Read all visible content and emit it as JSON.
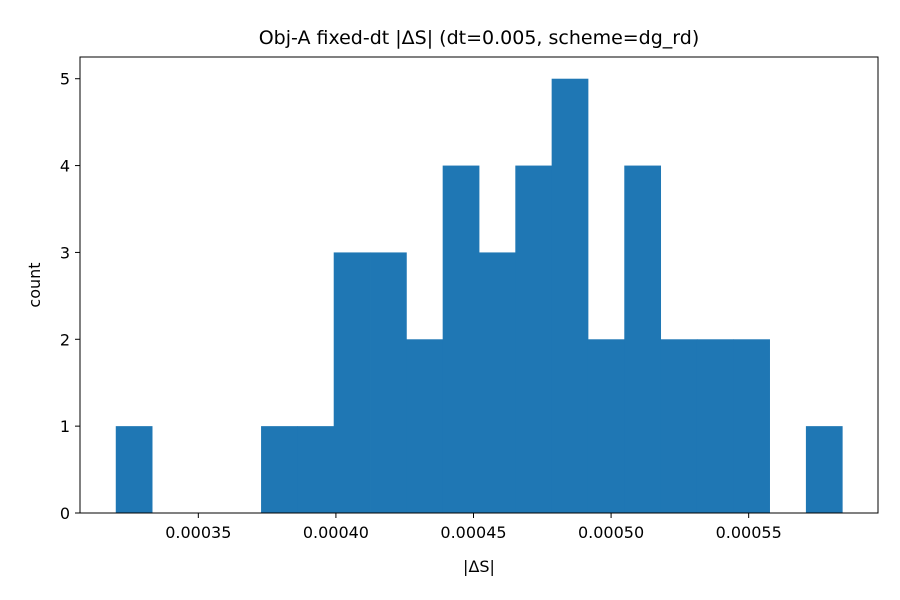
{
  "chart_data": {
    "type": "bar",
    "title": "Obj-A fixed-dt |ΔS| (dt=0.005, scheme=dg_rd)",
    "xlabel": "|ΔS|",
    "ylabel": "count",
    "bins": [
      {
        "x0": 0.00032,
        "x1": 0.0003332,
        "count": 1
      },
      {
        "x0": 0.0003332,
        "x1": 0.0003464,
        "count": 0
      },
      {
        "x0": 0.0003464,
        "x1": 0.0003596,
        "count": 0
      },
      {
        "x0": 0.0003596,
        "x1": 0.0003728,
        "count": 0
      },
      {
        "x0": 0.0003728,
        "x1": 0.000386,
        "count": 1
      },
      {
        "x0": 0.000386,
        "x1": 0.0003992,
        "count": 1
      },
      {
        "x0": 0.0003992,
        "x1": 0.0004124,
        "count": 3
      },
      {
        "x0": 0.0004124,
        "x1": 0.0004256,
        "count": 3
      },
      {
        "x0": 0.0004256,
        "x1": 0.0004388,
        "count": 2
      },
      {
        "x0": 0.0004388,
        "x1": 0.000452,
        "count": 4
      },
      {
        "x0": 0.000452,
        "x1": 0.0004652,
        "count": 3
      },
      {
        "x0": 0.0004652,
        "x1": 0.0004784,
        "count": 4
      },
      {
        "x0": 0.0004784,
        "x1": 0.0004916,
        "count": 5
      },
      {
        "x0": 0.0004916,
        "x1": 0.0005048,
        "count": 2
      },
      {
        "x0": 0.0005048,
        "x1": 0.000518,
        "count": 4
      },
      {
        "x0": 0.000518,
        "x1": 0.0005312,
        "count": 2
      },
      {
        "x0": 0.0005312,
        "x1": 0.0005444,
        "count": 2
      },
      {
        "x0": 0.0005444,
        "x1": 0.0005576,
        "count": 2
      },
      {
        "x0": 0.0005576,
        "x1": 0.0005708,
        "count": 0
      },
      {
        "x0": 0.0005708,
        "x1": 0.000584,
        "count": 1
      }
    ],
    "xlim": [
      0.000307,
      0.000597
    ],
    "ylim": [
      0,
      5.25
    ],
    "xticks": [
      0.00035,
      0.0004,
      0.00045,
      0.0005,
      0.00055
    ],
    "xtick_labels": [
      "0.00035",
      "0.00040",
      "0.00045",
      "0.00050",
      "0.00055"
    ],
    "yticks": [
      0,
      1,
      2,
      3,
      4,
      5
    ],
    "ytick_labels": [
      "0",
      "1",
      "2",
      "3",
      "4",
      "5"
    ],
    "bar_color": "#1f77b4",
    "grid": false
  }
}
